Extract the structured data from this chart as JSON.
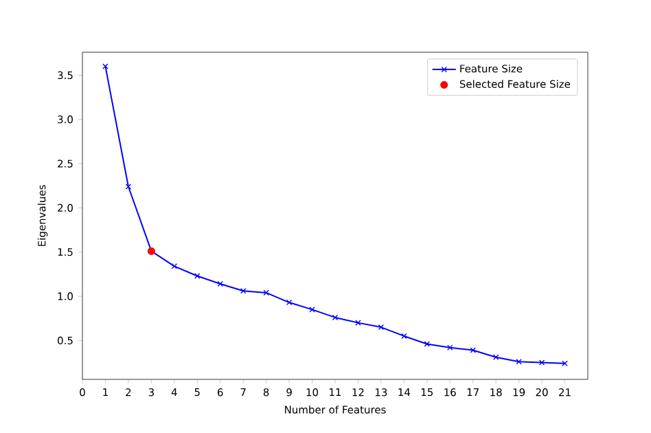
{
  "chart_data": {
    "type": "line",
    "xlabel": "Number of Features",
    "ylabel": "Eigenvalues",
    "xlim": [
      0,
      22
    ],
    "ylim": [
      0.06,
      3.76
    ],
    "xticks": [
      0,
      1,
      2,
      3,
      4,
      5,
      6,
      7,
      8,
      9,
      10,
      11,
      12,
      13,
      14,
      15,
      16,
      17,
      18,
      19,
      20,
      21
    ],
    "yticks": [
      {
        "value": 0.5,
        "label": "0.5"
      },
      {
        "value": 1,
        "label": "1.0"
      },
      {
        "value": 1.5,
        "label": "1.5"
      },
      {
        "value": 2,
        "label": "2.0"
      },
      {
        "value": 2.5,
        "label": "2.5"
      },
      {
        "value": 3,
        "label": "3.0"
      },
      {
        "value": 3.5,
        "label": "3.5"
      }
    ],
    "legend": "top right",
    "series": [
      {
        "name": "Feature Size",
        "color": "#0000ff",
        "marker": "cross",
        "x": [
          1,
          2,
          3,
          4,
          5,
          6,
          7,
          8,
          9,
          10,
          11,
          12,
          13,
          14,
          15,
          16,
          17,
          18,
          19,
          20,
          21
        ],
        "values": [
          3.6,
          2.24,
          1.51,
          1.34,
          1.23,
          1.14,
          1.06,
          1.04,
          0.93,
          0.85,
          0.76,
          0.7,
          0.65,
          0.55,
          0.46,
          0.42,
          0.39,
          0.31,
          0.26,
          0.25,
          0.24
        ]
      },
      {
        "name": "Selected Feature Size",
        "type": "scatter",
        "color": "#ff0000",
        "marker": "circle",
        "x": [
          3
        ],
        "values": [
          1.51
        ]
      }
    ]
  }
}
